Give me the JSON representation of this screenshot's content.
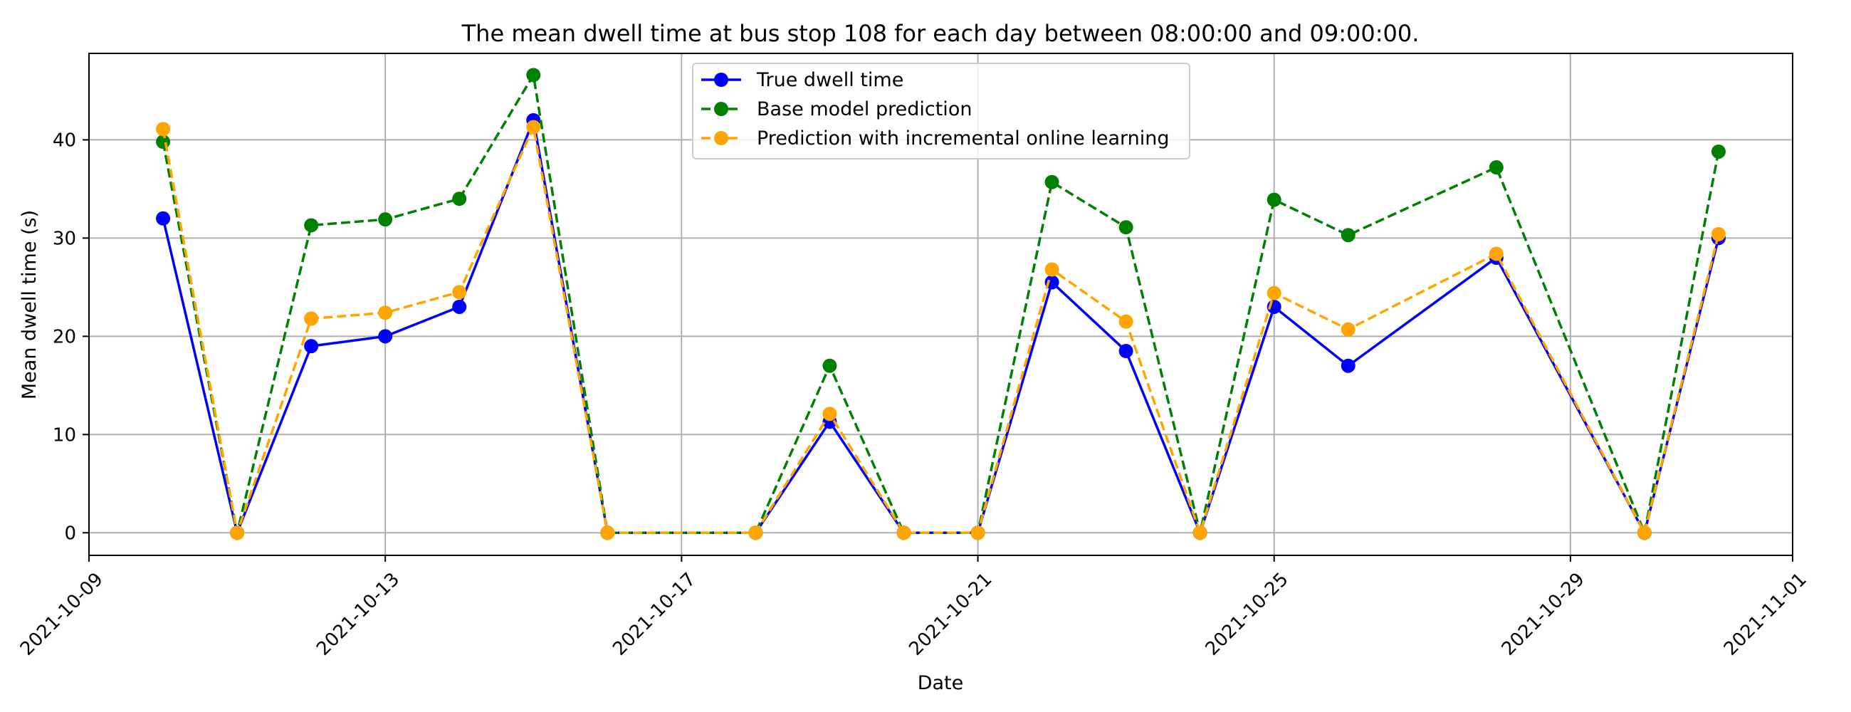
{
  "chart_data": {
    "type": "line",
    "title": "The mean dwell time at bus stop 108 for each day between 08:00:00 and 09:00:00.",
    "xlabel": "Date",
    "ylabel": "Mean dwell time (s)",
    "xlim": [
      "2021-10-09",
      "2021-11-01"
    ],
    "ylim": [
      -2.3,
      48.8
    ],
    "x_ticks": [
      "2021-10-09",
      "2021-10-13",
      "2021-10-17",
      "2021-10-21",
      "2021-10-25",
      "2021-10-29",
      "2021-11-01"
    ],
    "y_ticks": [
      0,
      10,
      20,
      30,
      40
    ],
    "grid": true,
    "legend_position": "top-center",
    "x": [
      "2021-10-10",
      "2021-10-11",
      "2021-10-12",
      "2021-10-13",
      "2021-10-14",
      "2021-10-15",
      "2021-10-16",
      "2021-10-18",
      "2021-10-19",
      "2021-10-20",
      "2021-10-21",
      "2021-10-22",
      "2021-10-23",
      "2021-10-24",
      "2021-10-25",
      "2021-10-26",
      "2021-10-28",
      "2021-10-30",
      "2021-10-31"
    ],
    "series": [
      {
        "name": "True dwell time",
        "color": "#0000ff",
        "line_style": "solid",
        "values": [
          32,
          0,
          19,
          20,
          23,
          42,
          0,
          0,
          11.3,
          0,
          0,
          25.5,
          18.5,
          0,
          23,
          17,
          28,
          0,
          30
        ]
      },
      {
        "name": "Base model prediction",
        "color": "#008000",
        "line_style": "dashed",
        "values": [
          39.8,
          0,
          31.3,
          31.9,
          34,
          46.6,
          0,
          0,
          17,
          0,
          0,
          35.7,
          31.1,
          0,
          33.9,
          30.3,
          37.2,
          0,
          38.8
        ]
      },
      {
        "name": "Prediction with incremental online learning",
        "color": "#ffa500",
        "line_style": "dashed",
        "values": [
          41.1,
          0,
          21.8,
          22.4,
          24.5,
          41.3,
          0,
          0,
          12.1,
          0,
          0,
          26.8,
          21.5,
          0,
          24.4,
          20.7,
          28.4,
          0,
          30.4
        ]
      }
    ]
  }
}
